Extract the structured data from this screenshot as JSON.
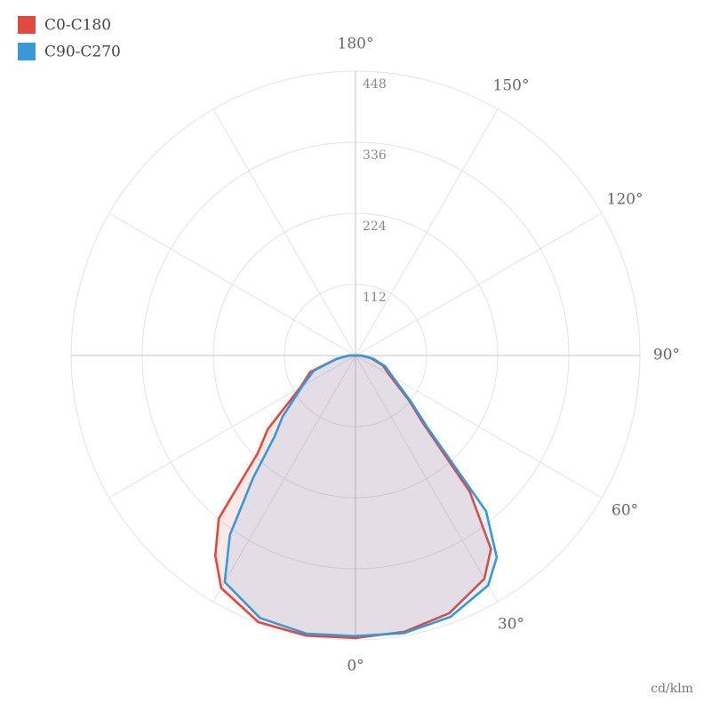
{
  "chart_data": {
    "type": "polar",
    "unit_label": "cd/klm",
    "x": [
      -90,
      -80,
      -70,
      -60,
      -50,
      -45,
      -40,
      -35,
      -30,
      -20,
      -10,
      0,
      10,
      20,
      30,
      35,
      40,
      45,
      50,
      60,
      70,
      80,
      90
    ],
    "series": [
      {
        "name": "C0-C180",
        "color": "#e04a3c",
        "values": [
          10,
          30,
          76,
          100,
          180,
          218,
          335,
          385,
          423,
          447,
          448,
          445,
          442,
          432,
          406,
          372,
          280,
          150,
          110,
          62,
          46,
          25,
          8
        ]
      },
      {
        "name": "C90-C270",
        "color": "#3a97d8",
        "values": [
          10,
          30,
          70,
          97,
          150,
          180,
          250,
          345,
          412,
          440,
          445,
          442,
          444,
          438,
          418,
          388,
          320,
          160,
          115,
          68,
          50,
          28,
          10
        ]
      }
    ],
    "rlim": [
      0,
      448
    ],
    "rticks": [
      112,
      224,
      336,
      448
    ],
    "angle_ticks": [
      {
        "value": 0,
        "label": "0°"
      },
      {
        "value": 30,
        "label": "30°"
      },
      {
        "value": 60,
        "label": "60°"
      },
      {
        "value": 90,
        "label": "90°"
      },
      {
        "value": 120,
        "label": "120°"
      },
      {
        "value": 150,
        "label": "150°"
      },
      {
        "value": 180,
        "label": "180°"
      }
    ],
    "grid": true,
    "legend": "top-left"
  }
}
